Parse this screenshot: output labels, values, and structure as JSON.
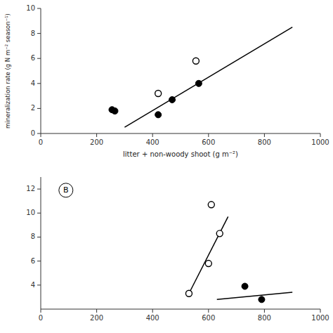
{
  "chart_data": [
    {
      "type": "scatter",
      "xlabel": "litter + non-woody shoot (g m⁻²)",
      "ylabel": "mineralization rate (g N m⁻² season⁻¹)",
      "series": [
        {
          "type": "scatter",
          "marker": "open-circle",
          "color": "#000000",
          "x": [
            420,
            555
          ],
          "values": [
            3.2,
            5.8
          ]
        },
        {
          "type": "scatter",
          "marker": "circle",
          "color": "#000000",
          "x": [
            255,
            265,
            420,
            470,
            565
          ],
          "values": [
            1.9,
            1.8,
            1.5,
            2.7,
            4.0
          ]
        },
        {
          "type": "line",
          "color": "#000000",
          "x": [
            300,
            900
          ],
          "values": [
            0.5,
            8.5
          ]
        }
      ],
      "xlim": [
        0,
        1000
      ],
      "ylim": [
        0,
        10
      ],
      "xticks": [
        0,
        200,
        400,
        600,
        800,
        1000
      ],
      "yticks": [
        0,
        2,
        4,
        6,
        8,
        10
      ],
      "grid": false
    },
    {
      "type": "scatter",
      "annotations": [
        "B"
      ],
      "series": [
        {
          "type": "scatter",
          "marker": "open-circle",
          "color": "#000000",
          "x": [
            530,
            600,
            640
          ],
          "values": [
            3.3,
            5.8,
            8.3
          ]
        },
        {
          "type": "scatter",
          "marker": "open-circle",
          "color": "#000000",
          "x": [
            610
          ],
          "values": [
            10.7
          ]
        },
        {
          "type": "scatter",
          "marker": "circle",
          "color": "#000000",
          "x": [
            730,
            790
          ],
          "values": [
            3.9,
            2.8
          ]
        },
        {
          "type": "line",
          "color": "#000000",
          "x": [
            530,
            670
          ],
          "values": [
            3.3,
            9.7
          ]
        },
        {
          "type": "line",
          "color": "#000000",
          "x": [
            630,
            900
          ],
          "values": [
            2.8,
            3.4
          ]
        }
      ],
      "xlim": [
        0,
        1000
      ],
      "ylim": [
        2,
        13
      ],
      "xticks": [
        0,
        200,
        400,
        600,
        800,
        1000
      ],
      "yticks": [
        4,
        6,
        8,
        10,
        12
      ],
      "grid": false
    }
  ]
}
